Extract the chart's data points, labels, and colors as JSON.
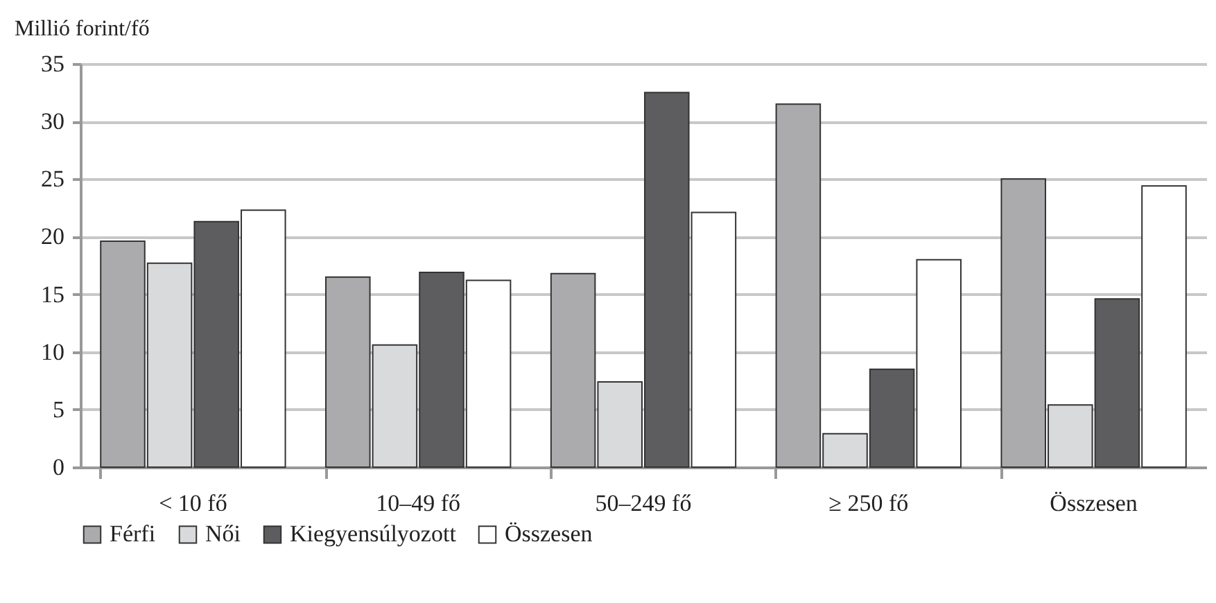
{
  "chart_data": {
    "type": "bar",
    "ylabel": "Millió forint/fő",
    "categories": [
      "< 10 fő",
      "10–49 fő",
      "50–249 fő",
      "≥ 250 fő",
      "Összesen"
    ],
    "series": [
      {
        "name": "Férfi",
        "color": "#ababad",
        "values": [
          19.6,
          16.5,
          16.8,
          31.5,
          25.0
        ]
      },
      {
        "name": "Női",
        "color": "#d9dadc",
        "values": [
          17.7,
          10.6,
          7.4,
          2.9,
          5.4
        ]
      },
      {
        "name": "Kiegyensúlyozott",
        "color": "#5d5d5f",
        "values": [
          21.3,
          16.9,
          32.5,
          8.5,
          14.6
        ]
      },
      {
        "name": "Összesen",
        "color": "#ffffff",
        "values": [
          22.3,
          16.2,
          22.1,
          18.0,
          24.4
        ]
      }
    ],
    "ylim": [
      0,
      35
    ],
    "yticks": [
      0,
      5,
      10,
      15,
      20,
      25,
      30,
      35
    ],
    "grid": "y",
    "legend": "bottom"
  }
}
